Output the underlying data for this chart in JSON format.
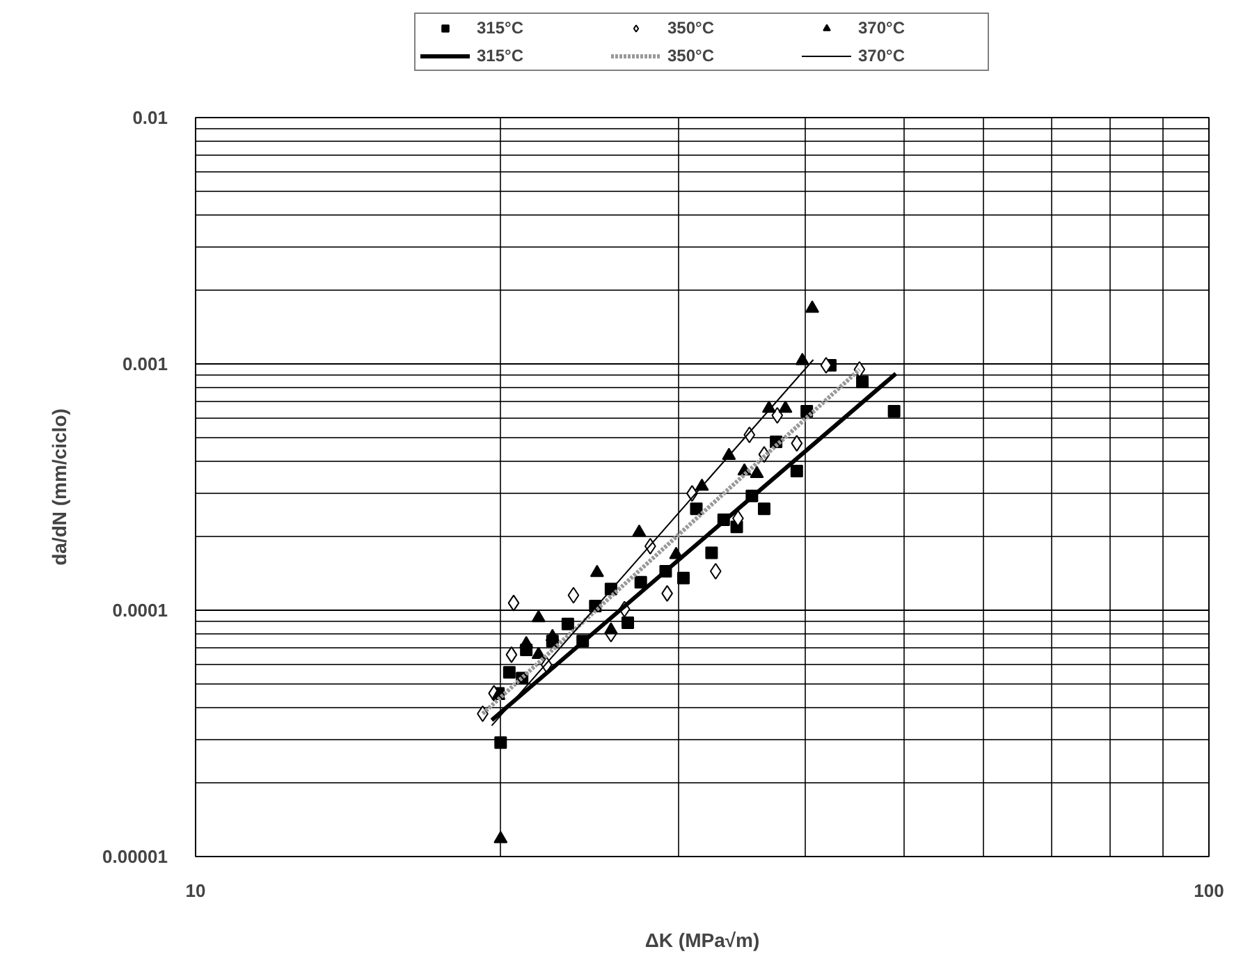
{
  "chart_data": {
    "type": "scatter",
    "xlabel": "ΔK (MPa√m)",
    "ylabel": "da/dN (mm/ciclo)",
    "log": "xy",
    "grid": true,
    "legend": "top",
    "xlim": [
      10,
      100
    ],
    "xticks": [
      10,
      100
    ],
    "ylim": [
      1e-05,
      0.01
    ],
    "yticks": [
      {
        "value": 1e-05,
        "label": "0.00001"
      },
      {
        "value": 0.0001,
        "label": "0.0001"
      },
      {
        "value": 0.001,
        "label": "0.001"
      },
      {
        "value": 0.01,
        "label": "0.01"
      }
    ],
    "series": [
      {
        "name": "315°C",
        "marker": "square",
        "color": "#000000",
        "x": [
          20.0,
          19.9,
          20.4,
          21.0,
          21.2,
          22.5,
          23.3,
          24.1,
          24.8,
          25.7,
          26.7,
          27.5,
          29.1,
          30.3,
          31.2,
          32.3,
          33.2,
          34.2,
          35.4,
          36.4,
          37.4,
          39.2,
          40.1,
          42.3,
          45.5,
          48.9
        ],
        "values": [
          2.9e-05,
          4.6e-05,
          5.6e-05,
          5.3e-05,
          6.9e-05,
          7.5e-05,
          8.8e-05,
          7.5e-05,
          0.000104,
          0.000122,
          8.9e-05,
          0.00013,
          0.000144,
          0.000135,
          0.000258,
          0.000171,
          0.000233,
          0.000218,
          0.000291,
          0.000258,
          0.000483,
          0.000367,
          0.000643,
          0.000987,
          0.000845,
          0.000643
        ]
      },
      {
        "name": "350°C",
        "marker": "diamond",
        "color": "#000000",
        "x": [
          19.2,
          19.7,
          20.5,
          20.6,
          22.2,
          23.6,
          25.7,
          26.5,
          28.1,
          29.2,
          30.9,
          32.6,
          34.3,
          35.2,
          36.4,
          37.5,
          39.2,
          41.9,
          45.2
        ],
        "values": [
          3.8e-05,
          4.6e-05,
          6.6e-05,
          0.000107,
          6e-05,
          0.000115,
          8e-05,
          0.000101,
          0.000182,
          0.000117,
          0.000298,
          0.000144,
          0.000236,
          0.000515,
          0.000429,
          0.000618,
          0.000476,
          0.000987,
          0.000949
        ]
      },
      {
        "name": "370°C",
        "marker": "triangle",
        "color": "#000000",
        "x": [
          20.0,
          19.9,
          21.2,
          21.8,
          21.8,
          22.5,
          24.9,
          25.7,
          27.4,
          29.8,
          31.6,
          33.6,
          34.8,
          35.8,
          36.8,
          38.2,
          39.7,
          40.6
        ],
        "values": [
          1.18e-05,
          4.5e-05,
          7.3e-05,
          6.6e-05,
          9.3e-05,
          7.8e-05,
          0.000142,
          8.3e-05,
          0.000207,
          0.000168,
          0.000318,
          0.000424,
          0.000367,
          0.000358,
          0.000659,
          0.000659,
          0.00103,
          0.00168
        ]
      },
      {
        "name": "315°C",
        "type": "line",
        "line_style": "solid",
        "color": "#000000",
        "x": [
          19.6,
          49.1
        ],
        "values": [
          3.58e-05,
          0.000913
        ]
      },
      {
        "name": "350°C",
        "type": "line",
        "line_style": "dotted",
        "color": "#999999",
        "x": [
          19.2,
          45.2
        ],
        "values": [
          3.8e-05,
          0.000949
        ]
      },
      {
        "name": "370°C",
        "type": "line",
        "line_style": "solid",
        "color": "#000000",
        "x": [
          19.6,
          40.7
        ],
        "values": [
          3.4e-05,
          0.00104
        ]
      }
    ]
  }
}
